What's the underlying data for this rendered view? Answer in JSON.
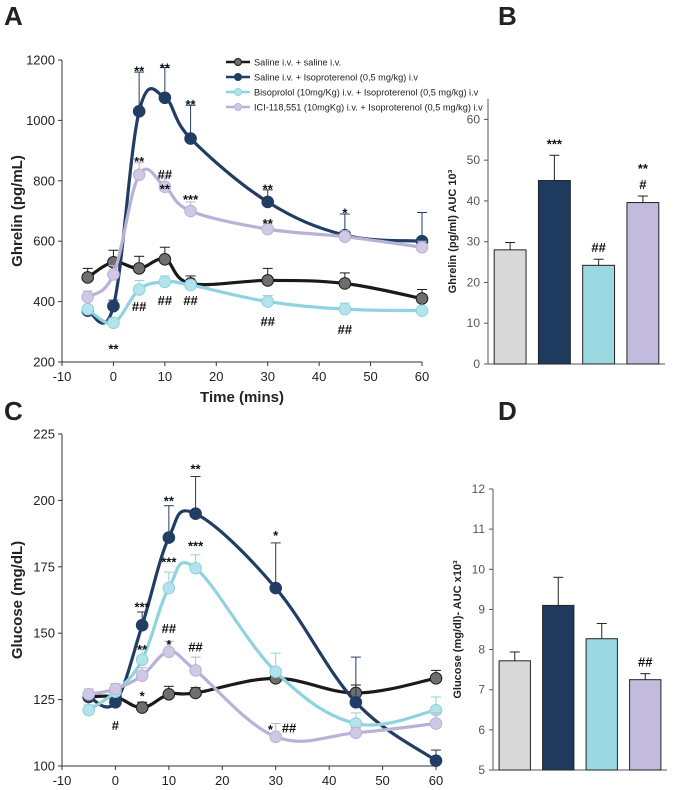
{
  "colors": {
    "saline": "#1a1a1a",
    "saline_marker": "#6e6e6e",
    "iso": "#223d63",
    "biso": "#8fd3de",
    "biso_marker": "#b4e4eb",
    "ici": "#b9b2d6",
    "ici_marker": "#cfc9e6",
    "bar_saline": "#d9d9d9",
    "bar_iso": "#1f3a5f",
    "bar_biso": "#9ad8e2",
    "bar_ici": "#c2bbdd"
  },
  "chart_data": [
    {
      "panel": "A",
      "type": "line",
      "xlabel": "Time (mins)",
      "ylabel": "Ghrelin (pg/mL)",
      "xlim": [
        -10,
        60
      ],
      "ylim": [
        200,
        1200
      ],
      "xticks": [
        -10,
        0,
        10,
        20,
        30,
        40,
        50,
        60
      ],
      "yticks": [
        200,
        400,
        600,
        800,
        1000,
        1200
      ],
      "legend_position": "top-right",
      "series": [
        {
          "name": "Saline i.v. + saline i.v.",
          "color_key": "saline",
          "marker_key": "saline_marker",
          "x": [
            -5,
            0,
            5,
            10,
            15,
            30,
            45,
            60
          ],
          "y": [
            480,
            530,
            510,
            540,
            460,
            470,
            460,
            410
          ],
          "err": [
            30,
            40,
            40,
            40,
            25,
            40,
            35,
            30
          ]
        },
        {
          "name": "Saline i.v. + Isoproterenol (0,5 mg/kg) i.v",
          "color_key": "iso",
          "marker_key": "iso",
          "x": [
            -5,
            0,
            5,
            10,
            15,
            30,
            45,
            60
          ],
          "y": [
            370,
            385,
            1030,
            1075,
            940,
            730,
            620,
            600
          ],
          "err": [
            15,
            20,
            130,
            100,
            110,
            40,
            70,
            95
          ]
        },
        {
          "name": "Bisoprolol (10mg/Kg) i.v. + Isoproterenol (0,5 mg/kg) i.v",
          "color_key": "biso",
          "marker_key": "biso_marker",
          "x": [
            -5,
            0,
            5,
            10,
            15,
            30,
            45,
            60
          ],
          "y": [
            375,
            330,
            440,
            465,
            455,
            400,
            375,
            370
          ],
          "err": [
            10,
            15,
            30,
            20,
            15,
            20,
            20,
            10
          ]
        },
        {
          "name": "ICI-118,551 (10mgKg) i.v. + Isoproterenol (0,5 mg/kg) i.v",
          "color_key": "ici",
          "marker_key": "ici_marker",
          "x": [
            -5,
            0,
            5,
            10,
            15,
            30,
            45,
            60
          ],
          "y": [
            415,
            490,
            820,
            780,
            700,
            640,
            615,
            580
          ],
          "err": [
            20,
            30,
            40,
            30,
            30,
            20,
            20,
            20
          ]
        }
      ],
      "annotations": [
        {
          "x": 5,
          "y": 1165,
          "text": "**"
        },
        {
          "x": 10,
          "y": 1175,
          "text": "**"
        },
        {
          "x": 15,
          "y": 1055,
          "text": "**"
        },
        {
          "x": 30,
          "y": 775,
          "text": "**"
        },
        {
          "x": 45,
          "y": 695,
          "text": "*"
        },
        {
          "x": 5,
          "y": 865,
          "text": "**"
        },
        {
          "x": 10,
          "y": 822,
          "text": "##"
        },
        {
          "x": 10,
          "y": 775,
          "text": "**"
        },
        {
          "x": 15,
          "y": 740,
          "text": "***"
        },
        {
          "x": 30,
          "y": 660,
          "text": "**"
        },
        {
          "x": 5,
          "y": 385,
          "text": "##"
        },
        {
          "x": 10,
          "y": 405,
          "text": "##"
        },
        {
          "x": 15,
          "y": 405,
          "text": "##"
        },
        {
          "x": 30,
          "y": 335,
          "text": "##"
        },
        {
          "x": 45,
          "y": 310,
          "text": "##"
        },
        {
          "x": 0,
          "y": 245,
          "text": "**"
        }
      ]
    },
    {
      "panel": "B",
      "type": "bar",
      "ylabel": "Ghrelin (pg/ml) AUC 10³",
      "ylim": [
        0,
        65
      ],
      "yticks": [
        0,
        10,
        20,
        30,
        40,
        50,
        60
      ],
      "categories": [
        "Saline i.v. + saline i.v.",
        "Saline i.v. + Isoproterenol (0,5 mg/kg) i.v",
        "Bisoprolol (10mg/Kg) i.v. + Isoproterenol (0,5 mg/kg) i.v",
        "ICI-118,551 (10mgKg) i.v. + Isoproterenol (0,5 mg/kg) i.v"
      ],
      "values": [
        28,
        45,
        24.2,
        39.6
      ],
      "errors": [
        1.8,
        6.2,
        1.5,
        1.6
      ],
      "color_keys": [
        "bar_saline",
        "bar_iso",
        "bar_biso",
        "bar_ici"
      ],
      "labels": [
        [],
        [
          "***"
        ],
        [
          "##"
        ],
        [
          "#",
          "**"
        ]
      ]
    },
    {
      "panel": "C",
      "type": "line",
      "xlabel": "Time (mins)",
      "ylabel": "Glucose (mg/dL)",
      "xlim": [
        -10,
        60
      ],
      "ylim": [
        100,
        225
      ],
      "xticks": [
        -10,
        0,
        10,
        20,
        30,
        40,
        50,
        60
      ],
      "yticks": [
        100,
        125,
        150,
        175,
        200,
        225
      ],
      "series": [
        {
          "name": "Saline i.v. + saline i.v.",
          "color_key": "saline",
          "marker_key": "saline_marker",
          "x": [
            -5,
            0,
            5,
            10,
            15,
            30,
            45,
            60
          ],
          "y": [
            126,
            126,
            122,
            127,
            127.5,
            133,
            127.5,
            133
          ],
          "err": [
            2,
            2,
            2,
            3,
            2,
            3,
            3,
            3
          ]
        },
        {
          "name": "Saline i.v. + Isoproterenol (0,5 mg/kg) i.v",
          "color_key": "iso",
          "marker_key": "iso",
          "x": [
            -5,
            0,
            5,
            10,
            15,
            30,
            45,
            60
          ],
          "y": [
            126,
            124,
            153,
            186,
            195,
            167,
            124,
            102
          ],
          "err": [
            2,
            2,
            5,
            12,
            14,
            17,
            17,
            4
          ]
        },
        {
          "name": "Bisoprolol (10mg/Kg) i.v. + Isoproterenol (0,5 mg/kg) i.v",
          "color_key": "biso",
          "marker_key": "biso_marker",
          "x": [
            -5,
            0,
            5,
            10,
            15,
            30,
            45,
            60
          ],
          "y": [
            121,
            128,
            140,
            167,
            174.5,
            135.5,
            116,
            121
          ],
          "err": [
            2,
            3,
            4,
            6,
            5,
            7,
            4,
            5
          ]
        },
        {
          "name": "ICI-118,551 (10mgKg) i.v. + Isoproterenol (0,5 mg/kg) i.v",
          "color_key": "ici",
          "marker_key": "ici_marker",
          "x": [
            -5,
            0,
            5,
            10,
            15,
            30,
            45,
            60
          ],
          "y": [
            127,
            129,
            134,
            143,
            136,
            111,
            112.5,
            116
          ],
          "err": [
            2,
            2,
            3,
            4,
            5,
            5,
            2,
            4
          ]
        }
      ],
      "annotations": [
        {
          "x": 0,
          "y": 115.5,
          "text": "#"
        },
        {
          "x": 5,
          "y": 160,
          "text": "***"
        },
        {
          "x": 5,
          "y": 144,
          "text": "**"
        },
        {
          "x": 5,
          "y": 126.5,
          "text": "*"
        },
        {
          "x": 10,
          "y": 200,
          "text": "**"
        },
        {
          "x": 10,
          "y": 177,
          "text": "***"
        },
        {
          "x": 10,
          "y": 152,
          "text": "##"
        },
        {
          "x": 10,
          "y": 146,
          "text": "*"
        },
        {
          "x": 15,
          "y": 212,
          "text": "**"
        },
        {
          "x": 15,
          "y": 183,
          "text": "***"
        },
        {
          "x": 15,
          "y": 145,
          "text": "##"
        },
        {
          "x": 30,
          "y": 187,
          "text": "*"
        },
        {
          "x": 29,
          "y": 114,
          "text": "*"
        },
        {
          "x": 32.5,
          "y": 114.5,
          "text": "##"
        }
      ]
    },
    {
      "panel": "D",
      "type": "bar",
      "ylabel": "Glucose (mg/dl)- AUC x10³",
      "ylim": [
        5,
        12
      ],
      "yticks": [
        5,
        6,
        7,
        8,
        9,
        10,
        11,
        12
      ],
      "categories": [
        "Saline i.v. + saline i.v.",
        "Saline i.v. + Isoproterenol (0,5 mg/kg) i.v",
        "Bisoprolol (10mg/Kg) i.v. + Isoproterenol (0,5 mg/kg) i.v",
        "ICI-118,551 (10mgKg) i.v. + Isoproterenol (0,5 mg/kg) i.v"
      ],
      "values": [
        7.72,
        9.1,
        8.27,
        7.25
      ],
      "errors": [
        0.22,
        0.7,
        0.38,
        0.15
      ],
      "color_keys": [
        "bar_saline",
        "bar_iso",
        "bar_biso",
        "bar_ici"
      ],
      "labels": [
        [],
        [],
        [],
        [
          "##"
        ]
      ]
    }
  ],
  "panel_letters": [
    "A",
    "B",
    "C",
    "D"
  ]
}
